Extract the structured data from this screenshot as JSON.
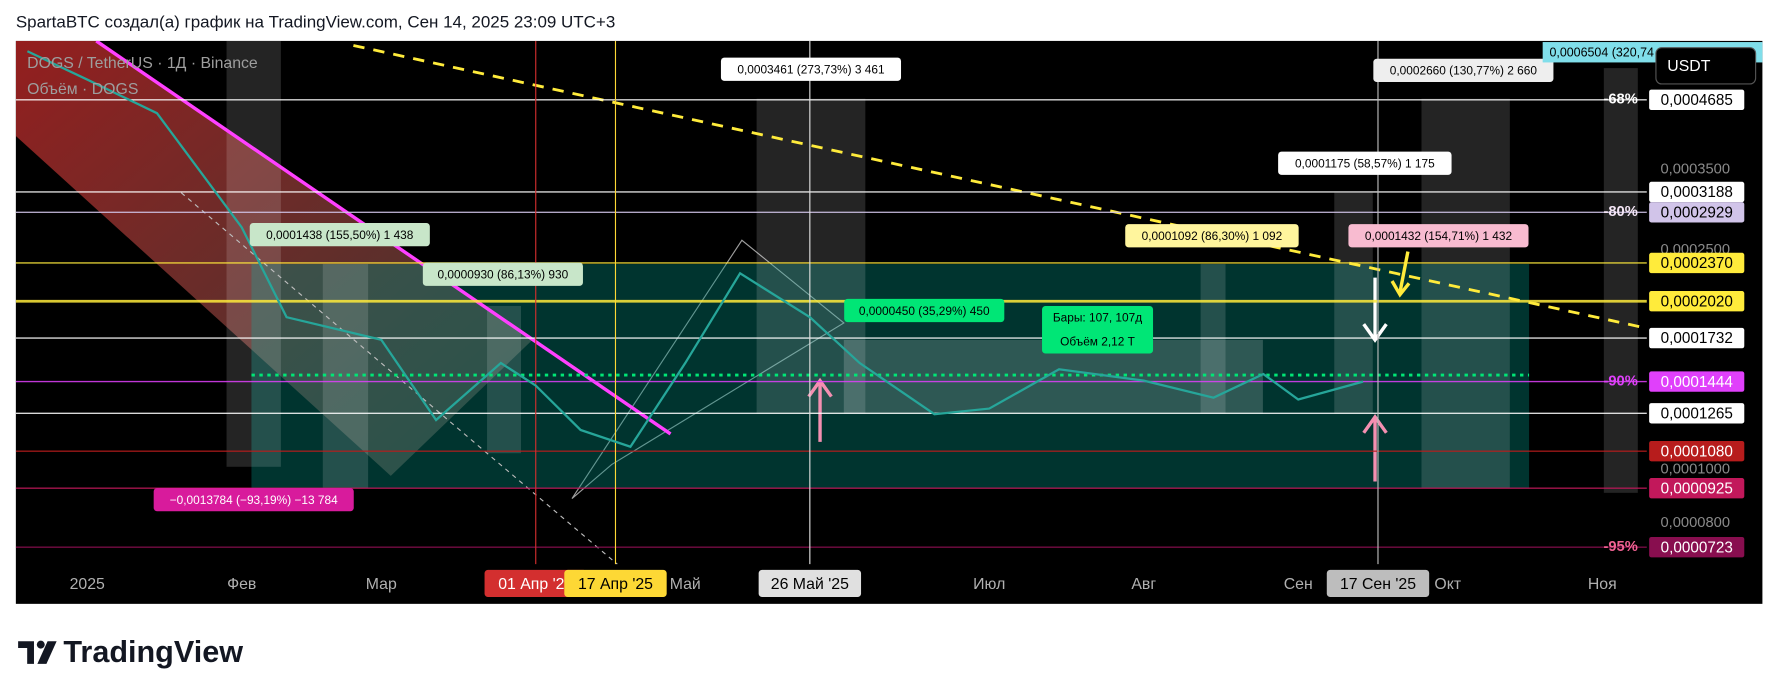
{
  "header": {
    "title": "SpartaBTC создал(а) график на TradingView.com, Сен 14, 2025 23:09 UTC+3"
  },
  "legend": {
    "symbol": "DOGS / TetherUS · 1Д · Binance",
    "volume": "Объём · DOGS"
  },
  "currency": "USDT",
  "top_label": "0,0006504 (320,74",
  "price_labels": [
    {
      "value": 0.0004685,
      "label": "0,0004685",
      "bg": "#ffffff",
      "fg": "#000000"
    },
    {
      "value": 0.0003188,
      "label": "0,0003188",
      "bg": "#ffffff",
      "fg": "#000000"
    },
    {
      "value": 0.0002929,
      "label": "0,0002929",
      "bg": "#d1c4e9",
      "fg": "#000000"
    },
    {
      "value": 0.000237,
      "label": "0,0002370",
      "bg": "#ffeb3b",
      "fg": "#000000"
    },
    {
      "value": 0.000202,
      "label": "0,0002020",
      "bg": "#ffeb3b",
      "fg": "#000000"
    },
    {
      "value": 0.0001732,
      "label": "0,0001732",
      "bg": "#ffffff",
      "fg": "#000000"
    },
    {
      "value": 0.0001444,
      "label": "0,0001444",
      "bg": "#e040fb",
      "fg": "#ffffff"
    },
    {
      "value": 0.0001265,
      "label": "0,0001265",
      "bg": "#ffffff",
      "fg": "#000000"
    },
    {
      "value": 0.000108,
      "label": "0,0001080",
      "bg": "#b71c1c",
      "fg": "#ffffff"
    },
    {
      "value": 9.25e-05,
      "label": "0,0000925",
      "bg": "#c2185b",
      "fg": "#ffffff"
    },
    {
      "value": 7.23e-05,
      "label": "0,0000723",
      "bg": "#880e4f",
      "fg": "#ffffff"
    }
  ],
  "price_grid": [
    {
      "value": 0.00035,
      "label": "0,0003500"
    },
    {
      "value": 0.00025,
      "label": "0,0002500"
    },
    {
      "value": 0.0001,
      "label": "0,0001000"
    },
    {
      "value": 8e-05,
      "label": "0,0000800"
    }
  ],
  "fib_levels": [
    {
      "value": 0.0004685,
      "label": "-68%",
      "color": "#ffffff"
    },
    {
      "value": 0.0002929,
      "label": "-80%",
      "color": "#f3e5f5"
    },
    {
      "value": 0.0001444,
      "label": "-90%",
      "color": "#e040fb"
    },
    {
      "value": 7.23e-05,
      "label": "-95%",
      "color": "#f06292"
    }
  ],
  "time_ticks": [
    {
      "value": "2025-01-01",
      "label": "2025"
    },
    {
      "value": "2025-02-01",
      "label": "Фев"
    },
    {
      "value": "2025-03-01",
      "label": "Мар"
    },
    {
      "value": "2025-05-01",
      "label": "Май"
    },
    {
      "value": "2025-07-01",
      "label": "Июл"
    },
    {
      "value": "2025-08-01",
      "label": "Авг"
    },
    {
      "value": "2025-09-01",
      "label": "Сен"
    },
    {
      "value": "2025-10-01",
      "label": "Окт"
    },
    {
      "value": "2025-11-01",
      "label": "Ноя"
    }
  ],
  "time_markers": [
    {
      "value": "2025-04-01",
      "label": "01 Апр '25",
      "bg": "#d32f2f",
      "fg": "#ffffff"
    },
    {
      "value": "2025-04-17",
      "label": "17 Апр '25",
      "bg": "#fdd835",
      "fg": "#000000"
    },
    {
      "value": "2025-05-26",
      "label": "26 Май '25",
      "bg": "#e0e0e0",
      "fg": "#000000"
    },
    {
      "value": "2025-09-17",
      "label": "17 Сен '25",
      "bg": "#bdbdbd",
      "fg": "#000000"
    }
  ],
  "price_series": {
    "color": "#26a69a",
    "dates": [
      "2024-12-20",
      "2025-01-01",
      "2025-01-15",
      "2025-02-01",
      "2025-02-10",
      "2025-03-01",
      "2025-03-12",
      "2025-03-25",
      "2025-04-01",
      "2025-04-10",
      "2025-04-20",
      "2025-05-01",
      "2025-05-12",
      "2025-05-26",
      "2025-06-05",
      "2025-06-20",
      "2025-07-01",
      "2025-07-15",
      "2025-08-01",
      "2025-08-15",
      "2025-08-25",
      "2025-09-01",
      "2025-09-14"
    ],
    "close": [
      0.000574,
      0.00051,
      0.000443,
      0.000275,
      0.000189,
      0.000172,
      0.000123,
      0.000156,
      0.000142,
      0.000118,
      0.00011,
      0.000156,
      0.000227,
      0.000189,
      0.000156,
      0.000126,
      0.000129,
      0.000152,
      0.000145,
      0.000135,
      0.000149,
      0.000134,
      0.0001444
    ]
  },
  "measurements": [
    {
      "text": "0,0003461 (273,73%) 3 461",
      "bg": "#ffffff",
      "fg": "#000000"
    },
    {
      "text": "0,0002660 (130,77%) 2 660",
      "bg": "#eeeeee",
      "fg": "#000000"
    },
    {
      "text": "0,0001175 (58,57%) 1 175",
      "bg": "#ffffff",
      "fg": "#000000"
    },
    {
      "text": "0,0001438 (155,50%) 1 438",
      "bg": "#c8e6c9",
      "fg": "#000000"
    },
    {
      "text": "0,0000930 (86,13%) 930",
      "bg": "#c8e6c9",
      "fg": "#000000"
    },
    {
      "text": "0,0001092 (86,30%) 1 092",
      "bg": "#fff59d",
      "fg": "#000000"
    },
    {
      "text": "0,0001432 (154,71%) 1 432",
      "bg": "#f8bbd0",
      "fg": "#000000"
    },
    {
      "text": "0,0000450 (35,29%) 450",
      "bg": "#00e676",
      "fg": "#000000"
    },
    {
      "text": "−0,0013784 (−93,19%) −13 784",
      "bg": "#d81b9c",
      "fg": "#ffffff"
    }
  ],
  "bars_info": [
    "Бары: 107, 107д",
    "Объём 2,12 T"
  ],
  "brand": "TradingView"
}
